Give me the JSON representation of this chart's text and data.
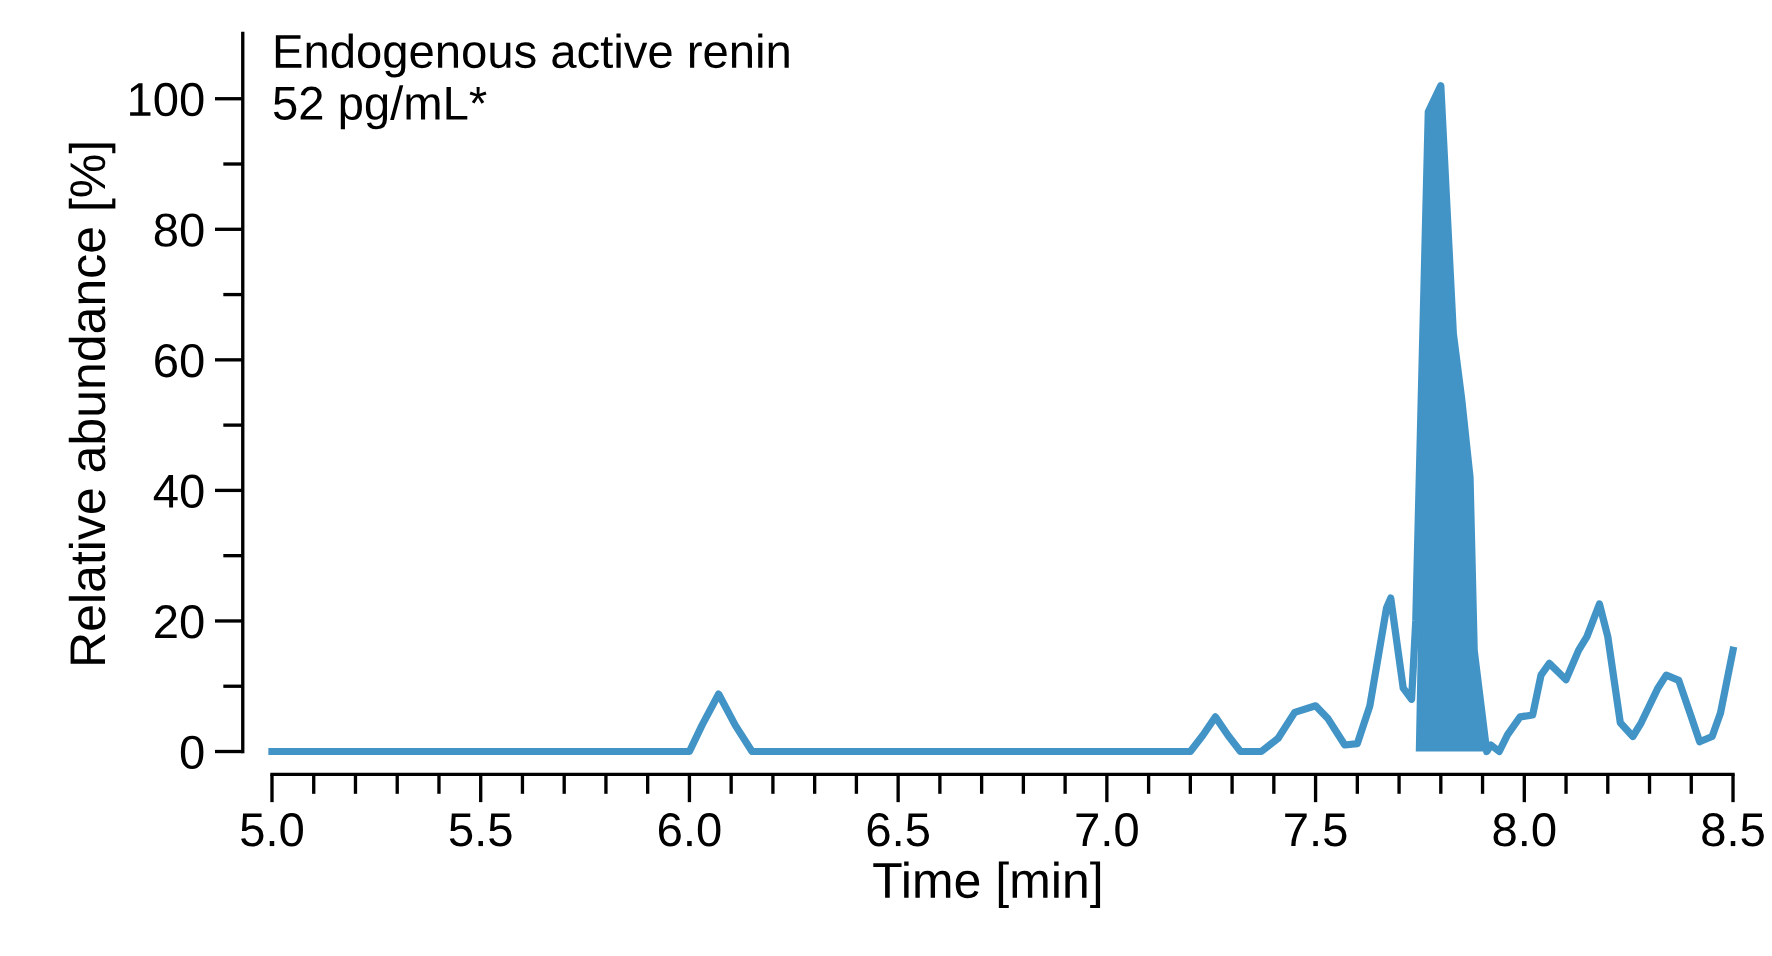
{
  "chart_data": {
    "type": "line",
    "xlabel": "Time [min]",
    "ylabel": "Relative abundance [%]",
    "annotations": [
      "Endogenous active renin",
      "52 pg/mL*"
    ],
    "xlim": [
      4.93,
      8.5
    ],
    "ylim": [
      -3.5,
      110
    ],
    "xticks": [
      {
        "value": 5.0,
        "label": "5.0"
      },
      {
        "value": 5.1,
        "label": null
      },
      {
        "value": 5.2,
        "label": null
      },
      {
        "value": 5.3,
        "label": null
      },
      {
        "value": 5.4,
        "label": null
      },
      {
        "value": 5.5,
        "label": "5.5"
      },
      {
        "value": 5.6,
        "label": null
      },
      {
        "value": 5.7,
        "label": null
      },
      {
        "value": 5.8,
        "label": null
      },
      {
        "value": 5.9,
        "label": null
      },
      {
        "value": 6.0,
        "label": "6.0"
      },
      {
        "value": 6.1,
        "label": null
      },
      {
        "value": 6.2,
        "label": null
      },
      {
        "value": 6.3,
        "label": null
      },
      {
        "value": 6.4,
        "label": null
      },
      {
        "value": 6.5,
        "label": "6.5"
      },
      {
        "value": 6.6,
        "label": null
      },
      {
        "value": 6.7,
        "label": null
      },
      {
        "value": 6.8,
        "label": null
      },
      {
        "value": 6.9,
        "label": null
      },
      {
        "value": 7.0,
        "label": "7.0"
      },
      {
        "value": 7.1,
        "label": null
      },
      {
        "value": 7.2,
        "label": null
      },
      {
        "value": 7.3,
        "label": null
      },
      {
        "value": 7.4,
        "label": null
      },
      {
        "value": 7.5,
        "label": "7.5"
      },
      {
        "value": 7.6,
        "label": null
      },
      {
        "value": 7.7,
        "label": null
      },
      {
        "value": 7.8,
        "label": null
      },
      {
        "value": 7.9,
        "label": null
      },
      {
        "value": 8.0,
        "label": "8.0"
      },
      {
        "value": 8.1,
        "label": null
      },
      {
        "value": 8.2,
        "label": null
      },
      {
        "value": 8.3,
        "label": null
      },
      {
        "value": 8.4,
        "label": null
      },
      {
        "value": 8.5,
        "label": "8.5"
      }
    ],
    "yticks": [
      0,
      {
        "value": 10,
        "label": null
      },
      20,
      {
        "value": 30,
        "label": null
      },
      40,
      {
        "value": 50,
        "label": null
      },
      60,
      {
        "value": 70,
        "label": null
      },
      80,
      {
        "value": 90,
        "label": null
      },
      100
    ],
    "grid": false,
    "legend": false,
    "marker": "none",
    "line_style": "solid",
    "series": [
      {
        "type": "line",
        "color": "#4394c6",
        "x": [
          5.0,
          6.0,
          6.03,
          6.07,
          6.11,
          6.15,
          7.2,
          7.23,
          7.26,
          7.29,
          7.32,
          7.37,
          7.41,
          7.45,
          7.5,
          7.53,
          7.57,
          7.6,
          7.63,
          7.67,
          7.68,
          7.71,
          7.73,
          7.74,
          7.77,
          7.8,
          7.83,
          7.85,
          7.87,
          7.88,
          7.91,
          7.92,
          7.94,
          7.96,
          7.99,
          8.02,
          8.04,
          8.06,
          8.1,
          8.13,
          8.15,
          8.18,
          8.2,
          8.23,
          8.26,
          8.28,
          8.32,
          8.34,
          8.37,
          8.4,
          8.42,
          8.45,
          8.47,
          8.5
        ],
        "values": [
          0,
          0,
          4,
          8.8,
          4,
          0,
          0,
          2.5,
          5.3,
          2.5,
          0,
          0,
          2,
          6,
          7,
          5,
          1,
          1.2,
          7,
          22,
          23.5,
          9.7,
          8,
          20,
          98,
          102,
          64,
          54,
          42,
          15.5,
          0,
          1,
          0,
          2.6,
          5.3,
          5.6,
          11.7,
          13.5,
          11,
          15.5,
          17.6,
          22.6,
          17.6,
          4.4,
          2.3,
          4.4,
          9.7,
          11.7,
          10.9,
          5.3,
          1.5,
          2.3,
          5.9,
          15.5
        ]
      },
      {
        "type": "area",
        "color": "#4394c6",
        "x": [
          7.74,
          7.77,
          7.8,
          7.83,
          7.85,
          7.87,
          7.88,
          7.91
        ],
        "values": [
          0,
          98,
          102,
          64,
          54,
          42,
          15.5,
          0
        ]
      }
    ]
  }
}
